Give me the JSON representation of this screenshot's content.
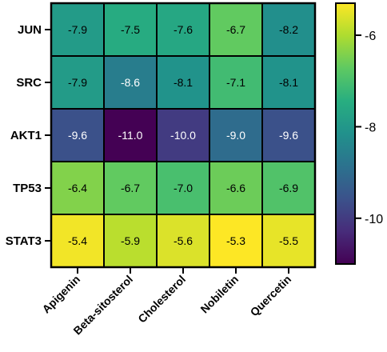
{
  "chart_data": {
    "type": "heatmap",
    "rows": [
      "JUN",
      "SRC",
      "AKT1",
      "TP53",
      "STAT3"
    ],
    "columns": [
      "Apigenin",
      "Beta-sitosterol",
      "Cholesterol",
      "Nobiletin",
      "Quercetin"
    ],
    "values": [
      [
        -7.9,
        -7.5,
        -7.6,
        -6.7,
        -8.2
      ],
      [
        -7.9,
        -8.6,
        -8.1,
        -7.1,
        -8.1
      ],
      [
        -9.6,
        -11.0,
        -10.0,
        -9.0,
        -9.6
      ],
      [
        -6.4,
        -6.7,
        -7.0,
        -6.6,
        -6.9
      ],
      [
        -5.4,
        -5.9,
        -5.6,
        -5.3,
        -5.5
      ]
    ],
    "value_labels": [
      [
        "-7.9",
        "-7.5",
        "-7.6",
        "-6.7",
        "-8.2"
      ],
      [
        "-7.9",
        "-8.6",
        "-8.1",
        "-7.1",
        "-8.1"
      ],
      [
        "-9.6",
        "-11.0",
        "-10.0",
        "-9.0",
        "-9.6"
      ],
      [
        "-6.4",
        "-6.7",
        "-7.0",
        "-6.6",
        "-6.9"
      ],
      [
        "-5.4",
        "-5.9",
        "-5.6",
        "-5.3",
        "-5.5"
      ]
    ],
    "colorbar": {
      "min": -11.0,
      "max": -5.3,
      "ticks": [
        -6,
        -8,
        -10
      ],
      "tick_labels": [
        "-6",
        "-8",
        "-10"
      ],
      "colormap": "viridis"
    },
    "title": "",
    "xlabel": "",
    "ylabel": ""
  }
}
